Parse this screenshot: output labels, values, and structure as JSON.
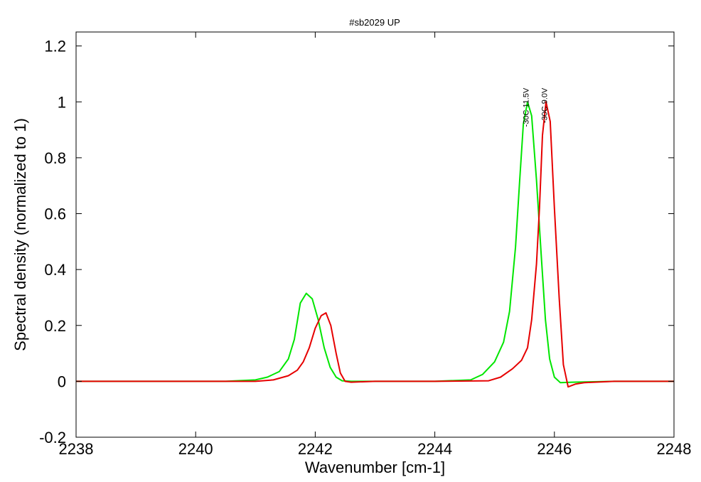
{
  "chart_data": {
    "type": "line",
    "title": "#sb2029 UP",
    "xlabel": "Wavenumber [cm-1]",
    "ylabel": "Spectral density (normalized to 1)",
    "xlim": [
      2238,
      2248
    ],
    "ylim": [
      -0.2,
      1.25
    ],
    "xticks": [
      2238,
      2240,
      2242,
      2244,
      2246,
      2248
    ],
    "xtick_labels": [
      "2238",
      "2240",
      "2242",
      "2244",
      "2246",
      "2248"
    ],
    "yticks": [
      -0.2,
      0,
      0.2,
      0.4,
      0.6,
      0.8,
      1,
      1.2
    ],
    "ytick_labels": [
      "-0.2",
      "0",
      "0.2",
      "0.4",
      "0.6",
      "0.8",
      "1",
      "1.2"
    ],
    "grid": false,
    "series": [
      {
        "name": "-30C 11.5V",
        "color": "#00e600",
        "x": [
          2238,
          2239,
          2240,
          2240.5,
          2241,
          2241.2,
          2241.4,
          2241.55,
          2241.65,
          2241.75,
          2241.85,
          2241.95,
          2242.05,
          2242.15,
          2242.25,
          2242.35,
          2242.45,
          2242.6,
          2243,
          2244,
          2244.6,
          2244.8,
          2245.0,
          2245.15,
          2245.25,
          2245.35,
          2245.42,
          2245.48,
          2245.55,
          2245.62,
          2245.7,
          2245.78,
          2245.85,
          2245.92,
          2246.0,
          2246.1,
          2246.3,
          2247,
          2248
        ],
        "y": [
          0,
          0,
          0,
          0,
          0.005,
          0.015,
          0.035,
          0.08,
          0.15,
          0.28,
          0.315,
          0.295,
          0.22,
          0.12,
          0.05,
          0.015,
          0.002,
          0,
          0,
          0,
          0.005,
          0.025,
          0.07,
          0.14,
          0.25,
          0.48,
          0.72,
          0.92,
          1.0,
          0.95,
          0.72,
          0.45,
          0.22,
          0.08,
          0.015,
          -0.005,
          -0.003,
          0,
          0
        ]
      },
      {
        "name": "-30C 9.0V",
        "color": "#e60000",
        "x": [
          2238,
          2239,
          2240,
          2241,
          2241.3,
          2241.55,
          2241.7,
          2241.8,
          2241.9,
          2242.0,
          2242.1,
          2242.18,
          2242.26,
          2242.35,
          2242.42,
          2242.5,
          2242.6,
          2243,
          2244,
          2244.9,
          2245.1,
          2245.3,
          2245.45,
          2245.55,
          2245.62,
          2245.7,
          2245.75,
          2245.8,
          2245.86,
          2245.93,
          2246.0,
          2246.08,
          2246.15,
          2246.23,
          2246.35,
          2246.5,
          2247,
          2248
        ],
        "y": [
          0,
          0,
          0,
          0,
          0.005,
          0.02,
          0.04,
          0.07,
          0.12,
          0.19,
          0.235,
          0.245,
          0.2,
          0.1,
          0.03,
          0,
          -0.003,
          0,
          0,
          0.002,
          0.015,
          0.045,
          0.075,
          0.12,
          0.22,
          0.42,
          0.62,
          0.88,
          1.0,
          0.93,
          0.62,
          0.3,
          0.06,
          -0.02,
          -0.01,
          -0.005,
          0,
          0
        ]
      }
    ],
    "annotations": [
      {
        "text": "-30C 11.5V",
        "x": 2245.57,
        "y": 1.05,
        "rotation": -90
      },
      {
        "text": "-30C 9.0V",
        "x": 2245.88,
        "y": 1.05,
        "rotation": -90
      }
    ]
  }
}
